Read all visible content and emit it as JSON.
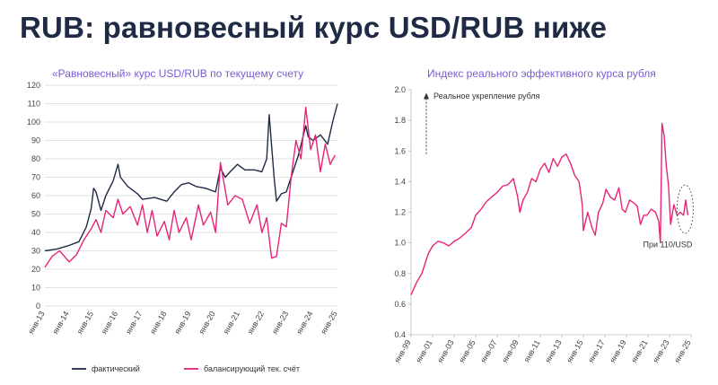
{
  "page": {
    "title": "RUB: равновесный курс USD/RUB ниже"
  },
  "chart_data": [
    {
      "type": "line",
      "title": "«Равновесный» курс USD/RUB по текущему счету",
      "ylim": [
        0,
        120
      ],
      "yticks": [
        0,
        10,
        20,
        30,
        40,
        50,
        60,
        70,
        80,
        90,
        100,
        110,
        120
      ],
      "xlim": [
        2013.0,
        2025.0
      ],
      "xtick_labels": [
        "янв-13",
        "янв-14",
        "янв-15",
        "янв-16",
        "янв-17",
        "янв-18",
        "янв-19",
        "янв-20",
        "янв-21",
        "янв-22",
        "янв-23",
        "янв-24",
        "янв-25"
      ],
      "xtick_values": [
        2013,
        2014,
        2015,
        2016,
        2017,
        2018,
        2019,
        2020,
        2021,
        2022,
        2023,
        2024,
        2025
      ],
      "grid": true,
      "legend_position": "bottom",
      "series": [
        {
          "name": "фактический",
          "color": "#1f2a44",
          "x": [
            2013.0,
            2013.5,
            2014.0,
            2014.4,
            2014.7,
            2014.9,
            2015.0,
            2015.1,
            2015.3,
            2015.5,
            2015.8,
            2016.0,
            2016.1,
            2016.4,
            2016.8,
            2017.0,
            2017.5,
            2018.0,
            2018.3,
            2018.6,
            2018.9,
            2019.2,
            2019.6,
            2020.0,
            2020.2,
            2020.4,
            2020.6,
            2020.9,
            2021.2,
            2021.6,
            2021.9,
            2022.1,
            2022.2,
            2022.4,
            2022.5,
            2022.7,
            2022.9,
            2023.1,
            2023.4,
            2023.7,
            2023.8,
            2024.0,
            2024.3,
            2024.6,
            2024.8,
            2025.0
          ],
          "y": [
            30,
            31,
            33,
            35,
            43,
            53,
            64,
            62,
            52,
            60,
            68,
            77,
            70,
            65,
            61,
            58,
            59,
            57,
            62,
            66,
            67,
            65,
            64,
            62,
            75,
            70,
            73,
            77,
            74,
            74,
            73,
            80,
            104,
            70,
            57,
            61,
            62,
            70,
            82,
            98,
            92,
            90,
            93,
            88,
            100,
            110
          ]
        },
        {
          "name": "балансирующий тек. счёт",
          "color": "#e8237a",
          "x": [
            2013.0,
            2013.3,
            2013.6,
            2014.0,
            2014.3,
            2014.6,
            2014.9,
            2015.1,
            2015.3,
            2015.5,
            2015.8,
            2016.0,
            2016.2,
            2016.5,
            2016.8,
            2017.0,
            2017.2,
            2017.4,
            2017.6,
            2017.9,
            2018.1,
            2018.3,
            2018.5,
            2018.8,
            2019.0,
            2019.3,
            2019.5,
            2019.8,
            2020.0,
            2020.2,
            2020.5,
            2020.8,
            2021.1,
            2021.4,
            2021.7,
            2021.9,
            2022.1,
            2022.3,
            2022.5,
            2022.7,
            2022.9,
            2023.1,
            2023.3,
            2023.5,
            2023.7,
            2023.9,
            2024.1,
            2024.3,
            2024.5,
            2024.7,
            2024.9
          ],
          "y": [
            21,
            27,
            30,
            24,
            28,
            36,
            42,
            47,
            40,
            52,
            48,
            58,
            50,
            54,
            44,
            55,
            40,
            52,
            38,
            46,
            36,
            52,
            40,
            48,
            36,
            55,
            44,
            51,
            40,
            78,
            55,
            60,
            58,
            45,
            55,
            40,
            48,
            26,
            27,
            45,
            43,
            70,
            90,
            80,
            108,
            85,
            93,
            73,
            88,
            77,
            82
          ]
        }
      ]
    },
    {
      "type": "line",
      "title": "Индекс реального эффективного курса рубля",
      "ylim": [
        0.4,
        2.0
      ],
      "yticks": [
        0.4,
        0.6,
        0.8,
        1.0,
        1.2,
        1.4,
        1.6,
        1.8,
        2.0
      ],
      "ytick_labels": [
        "0.4",
        "0.6",
        "0.8",
        "1.0",
        "1.2",
        "1.4",
        "1.6",
        "1.8",
        "2.0"
      ],
      "xlim": [
        1999.0,
        2025.0
      ],
      "xtick_labels": [
        "янв-99",
        "янв-01",
        "янв-03",
        "янв-05",
        "янв-07",
        "янв-09",
        "янв-11",
        "янв-13",
        "янв-15",
        "янв-17",
        "янв-19",
        "янв-21",
        "янв-23",
        "янв-25"
      ],
      "xtick_values": [
        1999,
        2001,
        2003,
        2005,
        2007,
        2009,
        2011,
        2013,
        2015,
        2017,
        2019,
        2021,
        2023,
        2025
      ],
      "grid": false,
      "annotations": {
        "arrow_label": "Реальное укрепление рубля",
        "point_label": "При 110/USD"
      },
      "series": [
        {
          "name": "",
          "color": "#e8237a",
          "x": [
            1999.0,
            1999.5,
            2000.0,
            2000.6,
            2001.0,
            2001.5,
            2002.0,
            2002.5,
            2003.0,
            2003.5,
            2004.0,
            2004.6,
            2005.0,
            2005.5,
            2006.0,
            2006.5,
            2007.0,
            2007.5,
            2008.0,
            2008.5,
            2008.9,
            2009.1,
            2009.4,
            2009.8,
            2010.2,
            2010.6,
            2011.0,
            2011.4,
            2011.8,
            2012.2,
            2012.6,
            2013.0,
            2013.4,
            2013.8,
            2014.2,
            2014.6,
            2014.9,
            2015.0,
            2015.4,
            2015.8,
            2016.1,
            2016.4,
            2016.8,
            2017.1,
            2017.5,
            2017.9,
            2018.3,
            2018.6,
            2018.9,
            2019.3,
            2019.7,
            2020.0,
            2020.3,
            2020.6,
            2020.9,
            2021.3,
            2021.7,
            2022.0,
            2022.15,
            2022.3,
            2022.5,
            2022.7,
            2022.9,
            2023.1,
            2023.4,
            2023.7,
            2024.0,
            2024.3,
            2024.5,
            2024.7
          ],
          "y": [
            0.66,
            0.74,
            0.8,
            0.93,
            0.98,
            1.01,
            1.0,
            0.98,
            1.01,
            1.03,
            1.06,
            1.1,
            1.18,
            1.22,
            1.27,
            1.3,
            1.33,
            1.37,
            1.38,
            1.42,
            1.3,
            1.2,
            1.28,
            1.33,
            1.42,
            1.4,
            1.48,
            1.52,
            1.46,
            1.55,
            1.5,
            1.56,
            1.58,
            1.52,
            1.44,
            1.4,
            1.25,
            1.08,
            1.2,
            1.1,
            1.05,
            1.2,
            1.26,
            1.35,
            1.3,
            1.28,
            1.36,
            1.22,
            1.2,
            1.28,
            1.26,
            1.24,
            1.12,
            1.18,
            1.18,
            1.22,
            1.2,
            1.14,
            1.0,
            1.78,
            1.7,
            1.5,
            1.38,
            1.12,
            1.25,
            1.18,
            1.2,
            1.18,
            1.28,
            1.18
          ]
        }
      ]
    }
  ],
  "legend": {
    "left_items": [
      "фактический",
      "балансирующий тек. счёт"
    ]
  }
}
